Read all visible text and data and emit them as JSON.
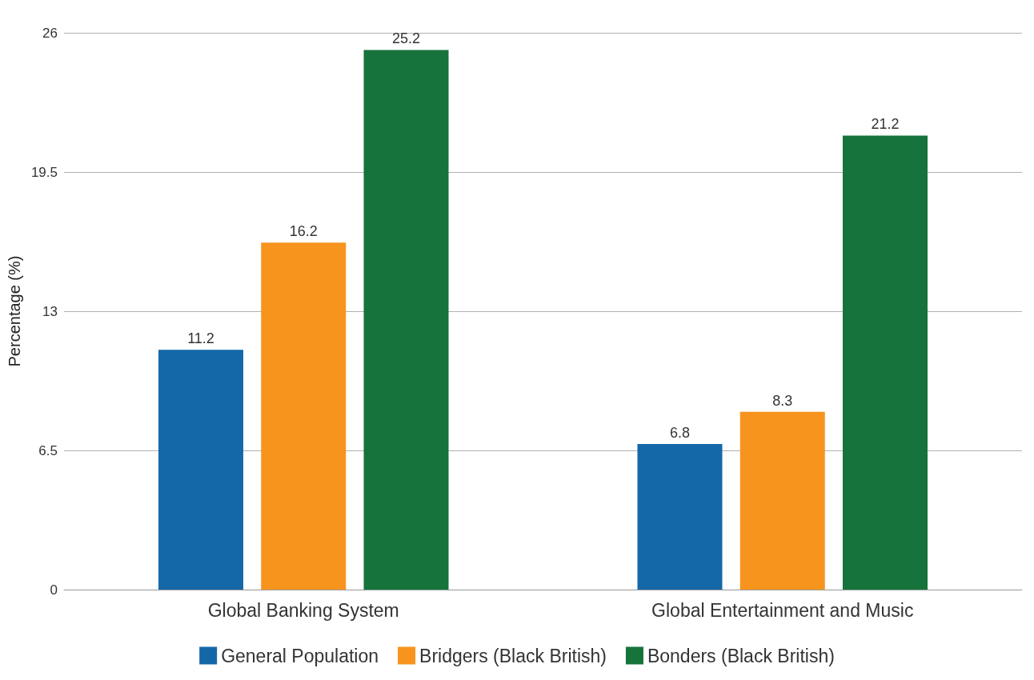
{
  "chart_data": {
    "type": "bar",
    "ylabel": "Percentage (%)",
    "categories": [
      "Global Banking System",
      "Global Entertainment and Music"
    ],
    "series": [
      {
        "name": "General Population",
        "color": "#1468a8",
        "values": [
          11.2,
          6.8
        ]
      },
      {
        "name": "Bridgers (Black British)",
        "color": "#f7941e",
        "values": [
          16.2,
          8.3
        ]
      },
      {
        "name": "Bonders (Black British)",
        "color": "#16733b",
        "values": [
          25.2,
          21.2
        ]
      }
    ],
    "ylim": [
      0,
      26
    ],
    "yticks": [
      0,
      6.5,
      13,
      19.5,
      26
    ],
    "grid": "y",
    "legend": "bottom",
    "data_labels": true
  }
}
